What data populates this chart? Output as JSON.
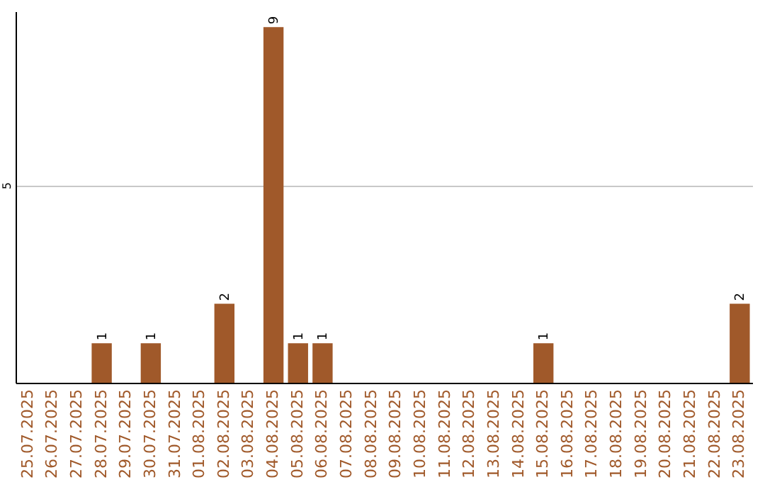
{
  "chart_data": {
    "type": "bar",
    "categories": [
      "25.07.2025",
      "26.07.2025",
      "27.07.2025",
      "28.07.2025",
      "29.07.2025",
      "30.07.2025",
      "31.07.2025",
      "01.08.2025",
      "02.08.2025",
      "03.08.2025",
      "04.08.2025",
      "05.08.2025",
      "06.08.2025",
      "07.08.2025",
      "08.08.2025",
      "09.08.2025",
      "10.08.2025",
      "11.08.2025",
      "12.08.2025",
      "13.08.2025",
      "14.08.2025",
      "15.08.2025",
      "16.08.2025",
      "17.08.2025",
      "18.08.2025",
      "19.08.2025",
      "20.08.2025",
      "21.08.2025",
      "22.08.2025",
      "23.08.2025"
    ],
    "series": [
      {
        "color": "#a0592a",
        "values": [
          0,
          0,
          0,
          1,
          0,
          1,
          0,
          0,
          2,
          0,
          9,
          1,
          1,
          0,
          0,
          0,
          0,
          0,
          0,
          0,
          0,
          1,
          0,
          0,
          0,
          0,
          0,
          0,
          0,
          2
        ]
      }
    ],
    "value_labels": [
      null,
      null,
      null,
      "1",
      null,
      "1",
      null,
      null,
      "2",
      null,
      "9",
      "1",
      "1",
      null,
      null,
      null,
      null,
      null,
      null,
      null,
      null,
      "1",
      null,
      null,
      null,
      null,
      null,
      null,
      null,
      "2"
    ],
    "ylim": [
      0,
      9.4
    ],
    "yticks": [
      5
    ],
    "grid": "y"
  }
}
